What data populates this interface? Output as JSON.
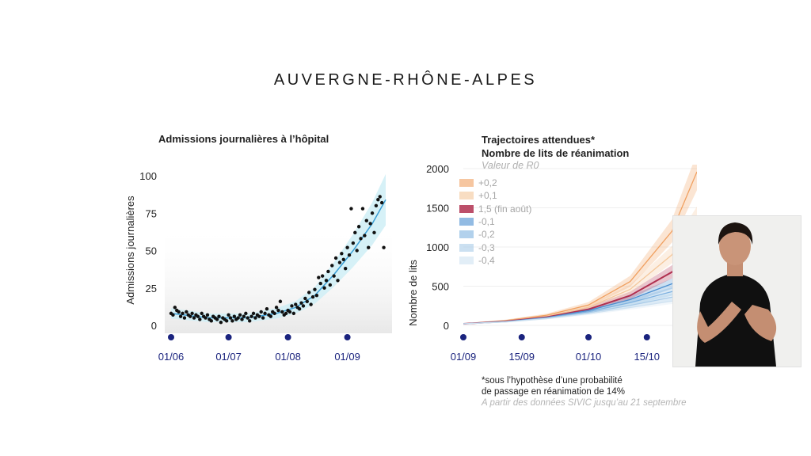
{
  "page": {
    "title": "AUVERGNE-RHÔNE-ALPES"
  },
  "left_chart": {
    "subtitle": "Admissions journalières à l’hôpital"
  },
  "right_chart": {
    "subtitle_line1": "Trajectoires attendues*",
    "subtitle_line2": "Nombre de lits de réanimation",
    "legend_title": "Valeur de R0"
  },
  "note": {
    "line1": "*sous l’hypothèse d’une probabilité",
    "line2": "de passage en réanimation de 14%",
    "source": "A partir des données SIVIC jusqu’au 21 septembre"
  },
  "colors": {
    "dots": "#111111",
    "fit_line": "#3a9fd6",
    "band": "#cfeef6",
    "axis_dots": "#1a237e",
    "date_labels": "#1a237e"
  },
  "chart_data": [
    {
      "type": "scatter",
      "title": "Admissions journalières à l’hôpital",
      "ylabel": "Admissions journalières",
      "xlabel": "",
      "ylim": [
        0,
        100
      ],
      "yticks": [
        0,
        25,
        50,
        75,
        100
      ],
      "x_tick_labels": [
        "01/06",
        "01/07",
        "01/08",
        "01/09"
      ],
      "x_range_days": [
        0,
        112
      ],
      "x_tick_days": [
        0,
        30,
        61,
        92
      ],
      "points": [
        [
          0,
          8
        ],
        [
          1,
          7
        ],
        [
          2,
          12
        ],
        [
          3,
          10
        ],
        [
          4,
          9
        ],
        [
          5,
          6
        ],
        [
          6,
          8
        ],
        [
          7,
          5
        ],
        [
          8,
          9
        ],
        [
          9,
          7
        ],
        [
          10,
          6
        ],
        [
          11,
          8
        ],
        [
          12,
          5
        ],
        [
          13,
          7
        ],
        [
          14,
          6
        ],
        [
          15,
          4
        ],
        [
          16,
          8
        ],
        [
          17,
          6
        ],
        [
          18,
          5
        ],
        [
          19,
          7
        ],
        [
          20,
          4
        ],
        [
          21,
          3
        ],
        [
          22,
          6
        ],
        [
          23,
          5
        ],
        [
          24,
          4
        ],
        [
          25,
          6
        ],
        [
          26,
          2
        ],
        [
          27,
          5
        ],
        [
          28,
          4
        ],
        [
          29,
          3
        ],
        [
          30,
          7
        ],
        [
          31,
          5
        ],
        [
          32,
          3
        ],
        [
          33,
          6
        ],
        [
          34,
          4
        ],
        [
          35,
          5
        ],
        [
          36,
          7
        ],
        [
          37,
          4
        ],
        [
          38,
          6
        ],
        [
          39,
          8
        ],
        [
          40,
          5
        ],
        [
          41,
          3
        ],
        [
          42,
          6
        ],
        [
          43,
          8
        ],
        [
          44,
          5
        ],
        [
          45,
          7
        ],
        [
          46,
          6
        ],
        [
          47,
          9
        ],
        [
          48,
          5
        ],
        [
          49,
          8
        ],
        [
          50,
          11
        ],
        [
          51,
          7
        ],
        [
          52,
          6
        ],
        [
          53,
          9
        ],
        [
          54,
          8
        ],
        [
          55,
          12
        ],
        [
          56,
          10
        ],
        [
          57,
          16
        ],
        [
          58,
          9
        ],
        [
          59,
          7
        ],
        [
          60,
          8
        ],
        [
          61,
          10
        ],
        [
          62,
          9
        ],
        [
          63,
          13
        ],
        [
          64,
          8
        ],
        [
          65,
          14
        ],
        [
          66,
          12
        ],
        [
          67,
          11
        ],
        [
          68,
          15
        ],
        [
          69,
          13
        ],
        [
          70,
          18
        ],
        [
          71,
          16
        ],
        [
          72,
          22
        ],
        [
          73,
          14
        ],
        [
          74,
          19
        ],
        [
          75,
          24
        ],
        [
          76,
          20
        ],
        [
          77,
          32
        ],
        [
          78,
          28
        ],
        [
          79,
          33
        ],
        [
          80,
          25
        ],
        [
          81,
          30
        ],
        [
          82,
          36
        ],
        [
          83,
          27
        ],
        [
          84,
          40
        ],
        [
          85,
          33
        ],
        [
          86,
          45
        ],
        [
          87,
          30
        ],
        [
          88,
          42
        ],
        [
          89,
          48
        ],
        [
          90,
          44
        ],
        [
          91,
          38
        ],
        [
          92,
          52
        ],
        [
          93,
          47
        ],
        [
          94,
          78
        ],
        [
          95,
          55
        ],
        [
          96,
          62
        ],
        [
          97,
          50
        ],
        [
          98,
          66
        ],
        [
          99,
          58
        ],
        [
          100,
          78
        ],
        [
          101,
          60
        ],
        [
          102,
          70
        ],
        [
          103,
          52
        ],
        [
          104,
          68
        ],
        [
          105,
          75
        ],
        [
          106,
          62
        ],
        [
          107,
          80
        ],
        [
          108,
          84
        ],
        [
          109,
          86
        ],
        [
          110,
          82
        ],
        [
          111,
          52
        ]
      ],
      "fit": [
        [
          0,
          8
        ],
        [
          20,
          5
        ],
        [
          40,
          5
        ],
        [
          55,
          8
        ],
        [
          65,
          12
        ],
        [
          75,
          20
        ],
        [
          85,
          34
        ],
        [
          95,
          50
        ],
        [
          105,
          68
        ],
        [
          112,
          84
        ]
      ]
    },
    {
      "type": "line",
      "title": "Trajectoires attendues* Nombre de lits de réanimation",
      "ylabel": "Nombre de lits",
      "xlabel": "",
      "ylim": [
        0,
        2000
      ],
      "yticks": [
        0,
        500,
        1000,
        1500,
        2000
      ],
      "x_tick_labels": [
        "01/09",
        "15/09",
        "01/10",
        "15/10"
      ],
      "x_range_days": [
        0,
        56
      ],
      "x_tick_days": [
        0,
        14,
        30,
        44
      ],
      "legend_position": "top-left",
      "series": [
        {
          "name": "+0,2",
          "color": "#f0a060",
          "values": [
            [
              0,
              20
            ],
            [
              10,
              60
            ],
            [
              20,
              130
            ],
            [
              30,
              260
            ],
            [
              40,
              560
            ],
            [
              50,
              1200
            ],
            [
              56,
              1960
            ]
          ]
        },
        {
          "name": "+0,1",
          "color": "#f4c79a",
          "values": [
            [
              0,
              20
            ],
            [
              10,
              55
            ],
            [
              20,
              115
            ],
            [
              30,
              230
            ],
            [
              40,
              460
            ],
            [
              50,
              900
            ],
            [
              56,
              1350
            ]
          ]
        },
        {
          "name": "1,5 (fin août)",
          "color": "#b03050",
          "values": [
            [
              0,
              20
            ],
            [
              10,
              50
            ],
            [
              20,
              105
            ],
            [
              30,
              205
            ],
            [
              40,
              380
            ],
            [
              50,
              680
            ],
            [
              56,
              920
            ]
          ]
        },
        {
          "name": "-0,1",
          "color": "#4a8ed0",
          "values": [
            [
              0,
              20
            ],
            [
              10,
              48
            ],
            [
              20,
              100
            ],
            [
              30,
              190
            ],
            [
              40,
              330
            ],
            [
              50,
              530
            ],
            [
              56,
              640
            ]
          ]
        },
        {
          "name": "-0,2",
          "color": "#7fb2e0",
          "values": [
            [
              0,
              20
            ],
            [
              10,
              46
            ],
            [
              20,
              95
            ],
            [
              30,
              175
            ],
            [
              40,
              290
            ],
            [
              50,
              430
            ],
            [
              56,
              500
            ]
          ]
        },
        {
          "name": "-0,3",
          "color": "#a9cbe8",
          "values": [
            [
              0,
              20
            ],
            [
              10,
              44
            ],
            [
              20,
              90
            ],
            [
              30,
              162
            ],
            [
              40,
              255
            ],
            [
              50,
              360
            ],
            [
              56,
              410
            ]
          ]
        },
        {
          "name": "-0,4",
          "color": "#cfe2f1",
          "values": [
            [
              0,
              20
            ],
            [
              10,
              42
            ],
            [
              20,
              86
            ],
            [
              30,
              150
            ],
            [
              40,
              228
            ],
            [
              50,
              310
            ],
            [
              56,
              345
            ]
          ]
        }
      ]
    }
  ]
}
